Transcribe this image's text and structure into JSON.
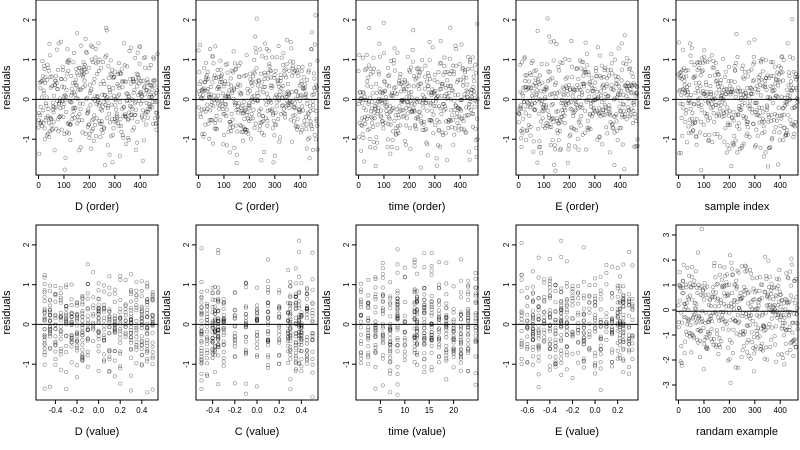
{
  "chart_data": [
    {
      "type": "scatter",
      "xlabel": "D (order)",
      "ylabel": "residuals",
      "xlim": [
        -10,
        470
      ],
      "ylim": [
        -1.9,
        2.5
      ],
      "xticks": [
        0,
        100,
        200,
        300,
        400
      ],
      "yticks": [
        -1,
        0,
        1,
        2
      ],
      "hline": 0,
      "n": 470,
      "seed": 11,
      "mode": "order",
      "y_sd": 0.62,
      "x_levels": []
    },
    {
      "type": "scatter",
      "xlabel": "C (order)",
      "ylabel": "residuals",
      "xlim": [
        -10,
        470
      ],
      "ylim": [
        -1.9,
        2.5
      ],
      "xticks": [
        0,
        100,
        200,
        300,
        400
      ],
      "yticks": [
        -1,
        0,
        1,
        2
      ],
      "hline": 0,
      "n": 470,
      "seed": 23,
      "mode": "order",
      "y_sd": 0.62,
      "x_levels": []
    },
    {
      "type": "scatter",
      "xlabel": "time (order)",
      "ylabel": "residuals",
      "xlim": [
        -10,
        470
      ],
      "ylim": [
        -1.9,
        2.5
      ],
      "xticks": [
        0,
        100,
        200,
        300,
        400
      ],
      "yticks": [
        -1,
        0,
        1,
        2
      ],
      "hline": 0,
      "n": 470,
      "seed": 37,
      "mode": "order",
      "y_sd": 0.62,
      "x_levels": []
    },
    {
      "type": "scatter",
      "xlabel": "E (order)",
      "ylabel": "residuals",
      "xlim": [
        -10,
        470
      ],
      "ylim": [
        -1.9,
        2.5
      ],
      "xticks": [
        0,
        100,
        200,
        300,
        400
      ],
      "yticks": [
        -1,
        0,
        1,
        2
      ],
      "hline": 0,
      "n": 470,
      "seed": 41,
      "mode": "order",
      "y_sd": 0.62,
      "x_levels": []
    },
    {
      "type": "scatter",
      "xlabel": "sample index",
      "ylabel": "residuals",
      "xlim": [
        -10,
        470
      ],
      "ylim": [
        -1.9,
        2.5
      ],
      "xticks": [
        0,
        100,
        200,
        300,
        400
      ],
      "yticks": [
        -1,
        0,
        1,
        2
      ],
      "hline": 0,
      "n": 470,
      "seed": 53,
      "mode": "order",
      "y_sd": 0.62,
      "x_levels": []
    },
    {
      "type": "scatter",
      "xlabel": "D (value)",
      "ylabel": "residuals",
      "xlim": [
        -0.58,
        0.55
      ],
      "ylim": [
        -1.9,
        2.5
      ],
      "xticks": [
        -0.4,
        -0.2,
        0.0,
        0.2,
        0.4
      ],
      "yticks": [
        -1,
        0,
        1,
        2
      ],
      "hline": 0,
      "n": 470,
      "seed": 61,
      "mode": "levels",
      "y_sd": 0.62,
      "x_levels": [
        -0.5,
        -0.45,
        -0.4,
        -0.35,
        -0.3,
        -0.25,
        -0.2,
        -0.15,
        -0.1,
        -0.05,
        0.0,
        0.05,
        0.1,
        0.15,
        0.2,
        0.25,
        0.3,
        0.35,
        0.4,
        0.45,
        0.5
      ]
    },
    {
      "type": "scatter",
      "xlabel": "C (value)",
      "ylabel": "residuals",
      "xlim": [
        -0.55,
        0.55
      ],
      "ylim": [
        -1.9,
        2.5
      ],
      "xticks": [
        -0.4,
        -0.2,
        0.0,
        0.2,
        0.4
      ],
      "yticks": [
        -1,
        0,
        1,
        2
      ],
      "hline": 0,
      "n": 470,
      "seed": 71,
      "mode": "levels",
      "y_sd": 0.62,
      "x_levels": [
        -0.5,
        -0.45,
        -0.4,
        -0.38,
        -0.35,
        -0.3,
        -0.2,
        -0.1,
        0.0,
        0.1,
        0.2,
        0.28,
        0.3,
        0.35,
        0.38,
        0.4,
        0.45,
        0.5
      ]
    },
    {
      "type": "scatter",
      "xlabel": "time (value)",
      "ylabel": "residuals",
      "xlim": [
        0,
        25
      ],
      "ylim": [
        -1.9,
        2.5
      ],
      "xticks": [
        5,
        10,
        15,
        20
      ],
      "yticks": [
        -1,
        0,
        1,
        2
      ],
      "hline": 0,
      "n": 470,
      "seed": 83,
      "mode": "levels",
      "y_sd": 0.62,
      "x_levels": [
        1,
        2.5,
        4,
        5.5,
        7,
        8.5,
        10,
        12,
        12.5,
        14,
        15.5,
        17,
        18.5,
        20,
        21.5,
        23,
        24.5
      ]
    },
    {
      "type": "scatter",
      "xlabel": "E (value)",
      "ylabel": "residuals",
      "xlim": [
        -0.7,
        0.38
      ],
      "ylim": [
        -1.9,
        2.5
      ],
      "xticks": [
        -0.6,
        -0.4,
        -0.2,
        0.0,
        0.2
      ],
      "yticks": [
        -1,
        0,
        1,
        2
      ],
      "hline": 0,
      "n": 470,
      "seed": 97,
      "mode": "levels",
      "y_sd": 0.62,
      "x_levels": [
        -0.65,
        -0.6,
        -0.55,
        -0.5,
        -0.45,
        -0.4,
        -0.35,
        -0.3,
        -0.25,
        -0.2,
        -0.15,
        -0.1,
        -0.05,
        0.0,
        0.05,
        0.1,
        0.15,
        0.2,
        0.22,
        0.25,
        0.3,
        0.33
      ]
    },
    {
      "type": "scatter",
      "xlabel": "randam example",
      "ylabel": "residuals",
      "xlim": [
        -10,
        470
      ],
      "ylim": [
        -3.6,
        3.4
      ],
      "xticks": [
        0,
        100,
        200,
        300,
        400
      ],
      "yticks": [
        -3,
        -2,
        -1,
        0,
        1,
        2,
        3
      ],
      "hline": -0.05,
      "n": 470,
      "seed": 101,
      "mode": "order",
      "y_sd": 1.0,
      "x_levels": []
    }
  ]
}
